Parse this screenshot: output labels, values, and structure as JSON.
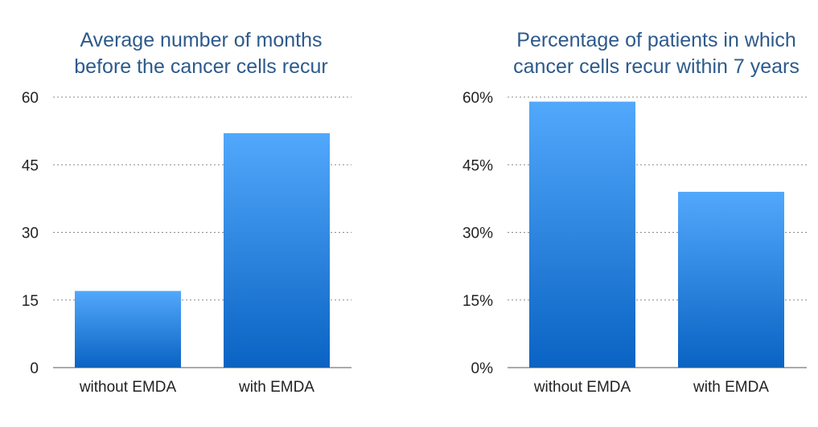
{
  "chart_data": [
    {
      "type": "bar",
      "title_lines": [
        "Average number of months",
        "before the cancer cells recur"
      ],
      "categories": [
        "without EMDA",
        "with EMDA"
      ],
      "values": [
        17,
        52
      ],
      "ylim": [
        0,
        60
      ],
      "yticks": [
        0,
        15,
        30,
        45,
        60
      ],
      "ytick_labels": [
        "0",
        "15",
        "30",
        "45",
        "60"
      ],
      "grid": true,
      "bar_color_top": "#52a8fb",
      "bar_color_bottom": "#0a63c3"
    },
    {
      "type": "bar",
      "title_lines": [
        "Percentage of patients in which",
        "cancer cells recur within 7 years"
      ],
      "categories": [
        "without EMDA",
        "with EMDA"
      ],
      "values": [
        59,
        39
      ],
      "ylim": [
        0,
        60
      ],
      "yticks": [
        0,
        15,
        30,
        45,
        60
      ],
      "ytick_labels": [
        "0%",
        "15%",
        "30%",
        "45%",
        "60%"
      ],
      "grid": true,
      "bar_color_top": "#52a8fb",
      "bar_color_bottom": "#0a63c3"
    }
  ]
}
